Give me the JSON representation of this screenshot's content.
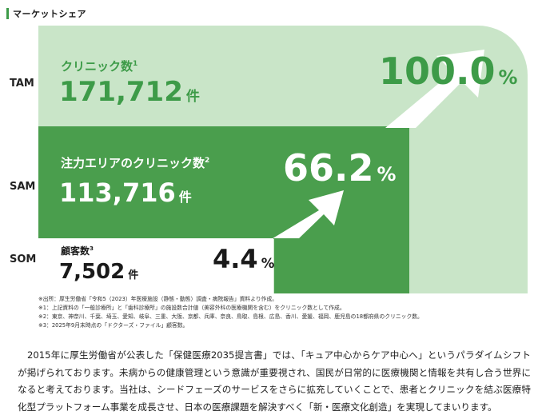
{
  "header": {
    "title": "マーケットシェア"
  },
  "colors": {
    "tam": "#c9e5c8",
    "sam": "#4a9e4d",
    "tam_text": "#3d9b48",
    "arrow": "#ffffff",
    "accent_bar": "#3d9b48"
  },
  "chart_data": {
    "type": "bar",
    "categories": [
      "TAM",
      "SAM",
      "SOM"
    ],
    "series": [
      {
        "values": [
          171712,
          113716,
          7502
        ]
      }
    ],
    "share_percent": [
      100.0,
      66.2,
      4.4
    ],
    "labels": [
      {
        "label": "クリニック数",
        "sup": "1",
        "value": "171,712",
        "unit": "件",
        "percent": "100.0",
        "percent_sign": "%"
      },
      {
        "label": "注力エリアのクリニック数",
        "sup": "2",
        "value": "113,716",
        "unit": "件",
        "percent": "66.2",
        "percent_sign": "%"
      },
      {
        "label": "顧客数",
        "sup": "3",
        "value": "7,502",
        "unit": "件",
        "percent": "4.4",
        "percent_sign": "%"
      }
    ]
  },
  "notes": [
    "※出所：厚生労働省「令和5（2023）年医療施設（静態・動態）調査・病院報告」資料より作成。",
    "※1：上記資料の「一般診療所」と「歯科診療所」の施設数合計値（美容外科の医療機関を含む）をクリニック数として作成。",
    "※2：東京、神奈川、千葉、埼玉、愛知、岐阜、三重、大阪、京都、兵庫、奈良、鳥取、島根、広島、香川、愛媛、福岡、鹿児島の18都府県のクリニック数。",
    "※3：2025年9月末時点の「ドクターズ・ファイル」顧客数。"
  ],
  "paragraph": "2015年に厚生労働省が公表した「保健医療2035提言書」では、「キュア中心からケア中心へ」というパラダイムシフトが掲げられております。未病からの健康管理という意識が重要視され、国民が日常的に医療機関と情報を共有し合う世界になると考えております。当社は、シードフェーズのサービスをさらに拡充していくことで、患者とクリニックを結ぶ医療特化型プラットフォーム事業を成長させ、日本の医療課題を解決すべく「新・医療文化創造」を実現してまいります。"
}
